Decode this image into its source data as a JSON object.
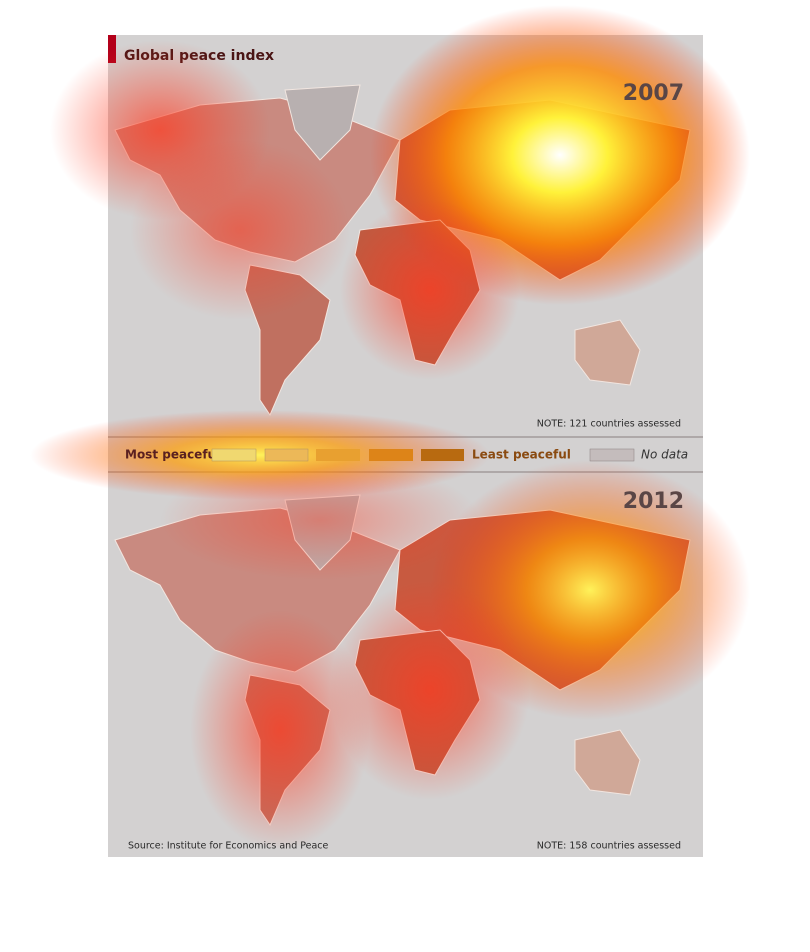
{
  "header": {
    "title": "Global peace index"
  },
  "maps": [
    {
      "year": "2007",
      "note": "NOTE: 121 countries assessed"
    },
    {
      "year": "2012",
      "note": "NOTE: 158 countries assessed"
    }
  ],
  "legend": {
    "low": "Most peaceful",
    "high": "Least peaceful",
    "none": "No data"
  },
  "footer": {
    "source": "Source: Institute for Economics and Peace"
  }
}
